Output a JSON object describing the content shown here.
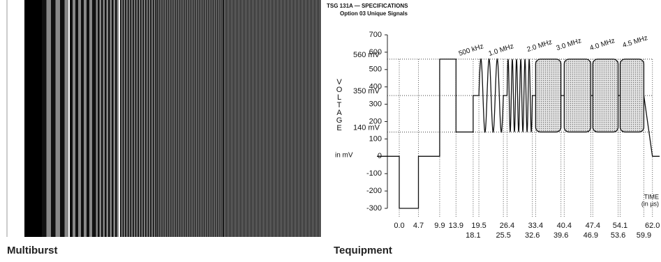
{
  "panels": [
    {
      "caption": "Multiburst"
    },
    {
      "caption": "Tequipment"
    }
  ],
  "chart_data": {
    "type": "line",
    "title": "TSG 131A — SPECIFICATIONS",
    "subtitle": "Option 03 Unique Signals",
    "y_label": "VOLTAGE",
    "y_unit": "in mV",
    "x_label": "TIME",
    "x_unit": "(in µs)",
    "ylim": [
      -300,
      700
    ],
    "yticks": [
      -300,
      -200,
      -100,
      0,
      100,
      200,
      300,
      400,
      500,
      600,
      700
    ],
    "level_labels": [
      {
        "value": 560,
        "label": "560 mV"
      },
      {
        "value": 350,
        "label": "350 mV"
      },
      {
        "value": 140,
        "label": "140 mV"
      }
    ],
    "xlim": [
      -5,
      64
    ],
    "xticks": [
      {
        "value": 0,
        "label": "0.0"
      },
      4.7,
      9.9,
      13.9,
      19.5,
      26.4,
      33.4,
      40.4,
      47.4,
      54.1,
      {
        "value": 62,
        "label": "62.0"
      }
    ],
    "xticks_lower": [
      18.1,
      25.5,
      32.6,
      39.6,
      46.9,
      53.6,
      59.9
    ],
    "bursts": [
      "500 kHz",
      "1.0 MHz",
      "2.0 MHz",
      "3.0 MHz",
      "4.0 MHz",
      "4.5 MHz"
    ]
  }
}
